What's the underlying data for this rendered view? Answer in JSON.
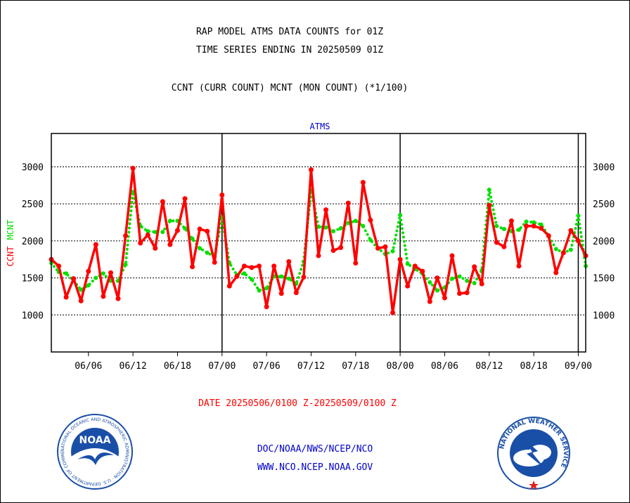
{
  "header": {
    "title_line1": "RAP MODEL ATMS DATA COUNTS for 01Z",
    "title_line2": "TIME SERIES ENDING IN 20250509 01Z",
    "subtitle": "CCNT (CURR COUNT) MCNT (MON COUNT) (*1/100)"
  },
  "chart_data": {
    "type": "line",
    "title": "ATMS",
    "ylabel_parts": [
      "CCNT",
      "MCNT"
    ],
    "ylim": [
      500,
      3450
    ],
    "yticks": [
      1000,
      1500,
      2000,
      2500,
      3000
    ],
    "xlim": [
      0,
      72
    ],
    "xticks": [
      {
        "x": 5,
        "label": "06/06"
      },
      {
        "x": 11,
        "label": "06/12"
      },
      {
        "x": 17,
        "label": "06/18"
      },
      {
        "x": 23,
        "label": "07/00"
      },
      {
        "x": 29,
        "label": "07/06"
      },
      {
        "x": 35,
        "label": "07/12"
      },
      {
        "x": 41,
        "label": "07/18"
      },
      {
        "x": 47,
        "label": "08/00"
      },
      {
        "x": 53,
        "label": "08/06"
      },
      {
        "x": 59,
        "label": "08/12"
      },
      {
        "x": 65,
        "label": "08/18"
      },
      {
        "x": 71,
        "label": "09/00"
      }
    ],
    "day_boundaries": [
      23,
      47,
      71
    ],
    "grid": true,
    "series": [
      {
        "name": "CCNT",
        "color": "#ff0000",
        "style": "solid",
        "values": [
          1750,
          1660,
          1240,
          1490,
          1190,
          1590,
          1950,
          1250,
          1570,
          1220,
          2070,
          2980,
          1970,
          2080,
          1900,
          2530,
          1950,
          2140,
          2570,
          1650,
          2160,
          2130,
          1710,
          2620,
          1390,
          1520,
          1660,
          1640,
          1660,
          1110,
          1660,
          1290,
          1720,
          1300,
          1510,
          2960,
          1800,
          2420,
          1870,
          1910,
          2510,
          1700,
          2790,
          2280,
          1900,
          1920,
          1030,
          1750,
          1390,
          1660,
          1590,
          1180,
          1500,
          1230,
          1800,
          1290,
          1300,
          1650,
          1420,
          2480,
          1980,
          1920,
          2270,
          1660,
          2200,
          2200,
          2170,
          2070,
          1570,
          1840,
          2140,
          2000,
          1800
        ]
      },
      {
        "name": "MCNT",
        "color": "#00e000",
        "style": "dotted",
        "values": [
          1700,
          1580,
          1560,
          1460,
          1340,
          1400,
          1500,
          1560,
          1460,
          1460,
          1680,
          2660,
          2200,
          2130,
          2120,
          2120,
          2270,
          2270,
          2170,
          2030,
          1900,
          1840,
          1790,
          2320,
          1700,
          1540,
          1560,
          1480,
          1330,
          1360,
          1520,
          1520,
          1490,
          1420,
          1720,
          2680,
          2190,
          2180,
          2130,
          2170,
          2240,
          2270,
          2200,
          2010,
          1900,
          1820,
          1860,
          2350,
          1690,
          1620,
          1560,
          1440,
          1330,
          1370,
          1490,
          1520,
          1460,
          1430,
          1600,
          2690,
          2200,
          2160,
          2130,
          2150,
          2260,
          2250,
          2220,
          2070,
          1890,
          1840,
          1880,
          2340,
          1660
        ]
      }
    ],
    "xlabel": "DATE 20250506/0100 Z-20250509/0100 Z"
  },
  "footer": {
    "line1": "DOC/NOAA/NWS/NCEP/NCO",
    "line2": "WWW.NCO.NCEP.NOAA.GOV"
  },
  "logos": {
    "left_label": "NOAA",
    "left_ring_text": "NATIONAL OCEANIC AND ATMOSPHERIC ADMINISTRATION · U.S. DEPARTMENT OF COMMERCE",
    "right_ring_text": "NATIONAL WEATHER SERVICE"
  },
  "colors": {
    "ccnt": "#ff0000",
    "mcnt": "#00e000",
    "chart_title": "#0000cc",
    "footer": "#0000cc",
    "noaa_blue": "#1a4fa8",
    "nws_blue": "#1a4fa8"
  }
}
